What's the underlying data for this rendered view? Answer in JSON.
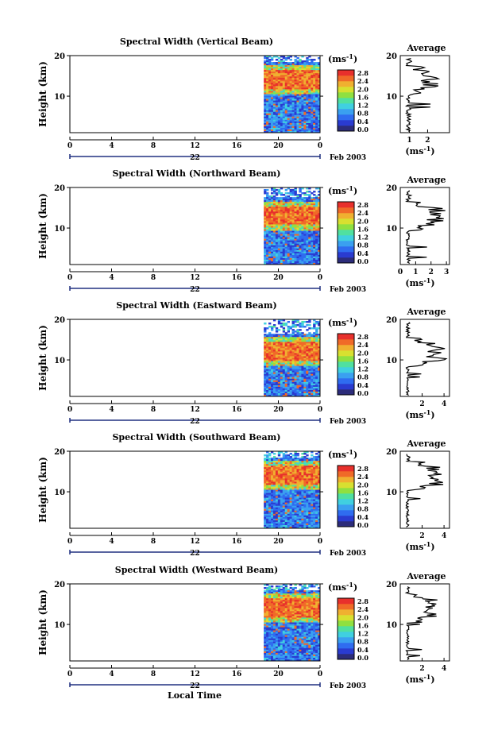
{
  "figure": {
    "xlabel": "Local Time",
    "colorbar_unit": "(ms",
    "colorbar_unit_exp": "-1",
    "avg_unit": "(ms",
    "avg_unit_exp": "-1"
  },
  "chart_data": [
    {
      "type": "heatmap",
      "title": "Spectral Width (Vertical Beam)",
      "ylabel": "Height (km)",
      "x_ticks": [
        "0",
        "4",
        "8",
        "12",
        "16",
        "20",
        "0"
      ],
      "day_label": "22",
      "month_label": "Feb 2003",
      "y_ticks": [
        "20",
        "10"
      ],
      "xlim": [
        0,
        24
      ],
      "ylim": [
        1,
        20
      ],
      "data_start_hour": 18.6,
      "colorbar_ticks": [
        "2.8",
        "2.4",
        "2.0",
        "1.6",
        "1.2",
        "0.8",
        "0.4",
        "0.0"
      ],
      "avg_title": "Average",
      "avg_x_ticks": [
        "1",
        "2"
      ],
      "avg_xlim": [
        0.5,
        3.2
      ],
      "avg_ticks_pos": [
        1,
        2
      ],
      "peak_height": 14,
      "peak_value": 2.6
    },
    {
      "type": "heatmap",
      "title": "Spectral Width (Northward Beam)",
      "ylabel": "Height (km)",
      "x_ticks": [
        "0",
        "4",
        "8",
        "12",
        "16",
        "20",
        "0"
      ],
      "day_label": "22",
      "month_label": "Feb 2003",
      "y_ticks": [
        "20",
        "10"
      ],
      "xlim": [
        0,
        24
      ],
      "ylim": [
        1,
        20
      ],
      "data_start_hour": 18.6,
      "colorbar_ticks": [
        "2.8",
        "2.4",
        "2.0",
        "1.6",
        "1.2",
        "0.8",
        "0.4",
        "0.0"
      ],
      "avg_title": "Average",
      "avg_x_ticks": [
        "0",
        "1",
        "2",
        "3"
      ],
      "avg_xlim": [
        0,
        3.2
      ],
      "avg_ticks_pos": [
        0,
        1,
        2,
        3
      ],
      "peak_height": 13,
      "peak_value": 3.0
    },
    {
      "type": "heatmap",
      "title": "Spectral Width (Eastward Beam)",
      "ylabel": "Height (km)",
      "x_ticks": [
        "0",
        "4",
        "8",
        "12",
        "16",
        "20",
        "0"
      ],
      "day_label": "22",
      "month_label": "Feb 2003",
      "y_ticks": [
        "20",
        "10"
      ],
      "xlim": [
        0,
        24
      ],
      "ylim": [
        1,
        20
      ],
      "data_start_hour": 18.6,
      "colorbar_ticks": [
        "2.8",
        "2.4",
        "2.0",
        "1.6",
        "1.2",
        "0.8",
        "0.4",
        "0.0"
      ],
      "avg_title": "Average",
      "avg_x_ticks": [
        "2",
        "4"
      ],
      "avg_xlim": [
        0,
        4.5
      ],
      "avg_ticks_pos": [
        2,
        4
      ],
      "peak_height": 12,
      "peak_value": 4.3
    },
    {
      "type": "heatmap",
      "title": "Spectral Width (Southward Beam)",
      "ylabel": "Height (km)",
      "x_ticks": [
        "0",
        "4",
        "8",
        "12",
        "16",
        "20",
        "0"
      ],
      "day_label": "22",
      "month_label": "Feb 2003",
      "y_ticks": [
        "20",
        "10"
      ],
      "xlim": [
        0,
        24
      ],
      "ylim": [
        1,
        20
      ],
      "data_start_hour": 18.6,
      "colorbar_ticks": [
        "2.8",
        "2.4",
        "2.0",
        "1.6",
        "1.2",
        "0.8",
        "0.4",
        "0.0"
      ],
      "avg_title": "Average",
      "avg_x_ticks": [
        "2",
        "4"
      ],
      "avg_xlim": [
        0,
        4.5
      ],
      "avg_ticks_pos": [
        2,
        4
      ],
      "peak_height": 14,
      "peak_value": 4.0
    },
    {
      "type": "heatmap",
      "title": "Spectral Width (Westward Beam)",
      "ylabel": "Height (km)",
      "x_ticks": [
        "0",
        "4",
        "8",
        "12",
        "16",
        "20",
        "0"
      ],
      "day_label": "22",
      "month_label": "Feb 2003",
      "y_ticks": [
        "20",
        "10"
      ],
      "xlim": [
        0,
        24
      ],
      "ylim": [
        1,
        20
      ],
      "data_start_hour": 18.6,
      "colorbar_ticks": [
        "2.8",
        "2.4",
        "2.0",
        "1.6",
        "1.2",
        "0.8",
        "0.4",
        "0.0"
      ],
      "avg_title": "Average",
      "avg_x_ticks": [
        "2",
        "4"
      ],
      "avg_xlim": [
        0,
        4.5
      ],
      "avg_ticks_pos": [
        2,
        4
      ],
      "peak_height": 14,
      "peak_value": 3.4
    }
  ],
  "colormap": [
    "#2c2c7a",
    "#2a3bd0",
    "#2f6cf0",
    "#3aa0f0",
    "#40d0e0",
    "#50e0a0",
    "#90e040",
    "#d8e030",
    "#f0b030",
    "#f06a28",
    "#e8302c"
  ]
}
